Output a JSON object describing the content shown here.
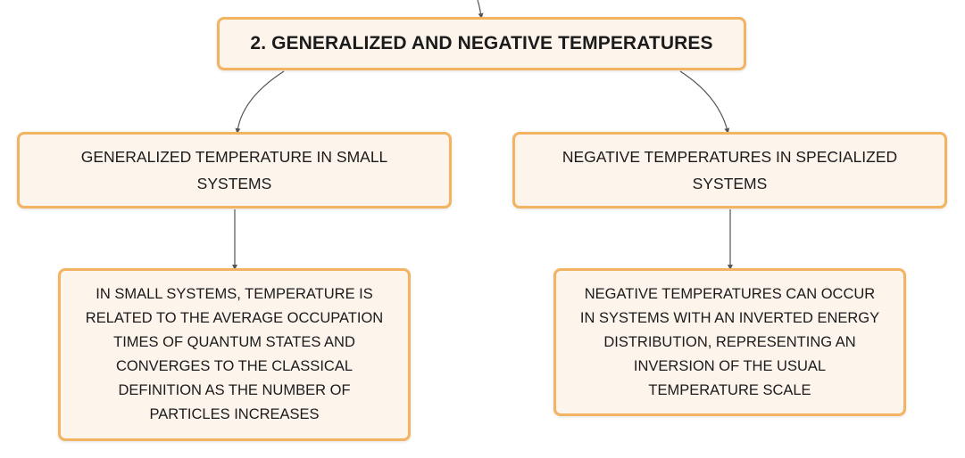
{
  "diagram": {
    "root": {
      "label": "2. GENERALIZED AND NEGATIVE TEMPERATURES"
    },
    "branches": [
      {
        "label": "GENERALIZED TEMPERATURE IN SMALL SYSTEMS",
        "detail": "IN SMALL SYSTEMS, TEMPERATURE IS RELATED TO THE AVERAGE OCCUPATION TIMES OF QUANTUM STATES AND CONVERGES TO THE CLASSICAL DEFINITION AS THE NUMBER OF PARTICLES INCREASES"
      },
      {
        "label": "NEGATIVE TEMPERATURES IN SPECIALIZED SYSTEMS",
        "detail": "NEGATIVE TEMPERATURES CAN OCCUR IN SYSTEMS WITH AN INVERTED ENERGY DISTRIBUTION, REPRESENTING AN INVERSION OF THE USUAL TEMPERATURE SCALE"
      }
    ],
    "colors": {
      "node_fill": "#fdf4ec",
      "node_border": "#f2b460",
      "connector": "#555555",
      "text": "#1b1b1b"
    }
  }
}
